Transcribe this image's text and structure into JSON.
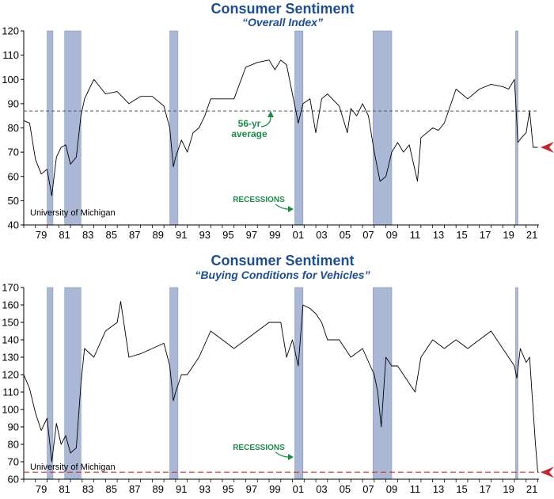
{
  "colors": {
    "title": "#1f4e8c",
    "recession": "#aab8d6",
    "line": "#000000",
    "average": "#555555",
    "current_line": "#d42d2d",
    "marker": "#c2272d",
    "annotation": "#1e8a4a"
  },
  "chart_data": [
    {
      "type": "line",
      "title": "Consumer Sentiment",
      "subtitle": "“Overall Index”",
      "source": "University of Michigan",
      "ylim": [
        40,
        120
      ],
      "yticks": [
        40,
        50,
        60,
        70,
        80,
        90,
        100,
        110,
        120
      ],
      "xlim": [
        1978.0,
        2022.1
      ],
      "xtick_labels": [
        "79",
        "81",
        "83",
        "85",
        "87",
        "89",
        "91",
        "93",
        "95",
        "97",
        "99",
        "01",
        "03",
        "05",
        "07",
        "09",
        "11",
        "13",
        "15",
        "17",
        "19",
        "21"
      ],
      "recessions": [
        [
          1980.0,
          1980.5
        ],
        [
          1981.5,
          1982.9
        ],
        [
          1990.5,
          1991.2
        ],
        [
          2001.2,
          2001.9
        ],
        [
          2007.9,
          2009.5
        ],
        [
          2020.1,
          2020.3
        ]
      ],
      "average": {
        "value": 87,
        "label": "56-yr\naverage"
      },
      "recessions_label": "RECESSIONS",
      "current_marker": 72,
      "series": [
        {
          "x": [
            1978.0,
            1978.5,
            1979.0,
            1979.5,
            1980.0,
            1980.4,
            1980.8,
            1981.2,
            1981.6,
            1982.0,
            1982.5,
            1982.9,
            1983.2,
            1983.6,
            1984.0,
            1984.5,
            1985.0,
            1986.0,
            1987.0,
            1988.0,
            1989.0,
            1990.0,
            1990.5,
            1990.8,
            1991.0,
            1991.5,
            1992.0,
            1992.5,
            1993.0,
            1993.5,
            1994.0,
            1995.0,
            1996.0,
            1997.0,
            1998.0,
            1999.0,
            1999.5,
            2000.0,
            2000.5,
            2001.0,
            2001.5,
            2001.9,
            2002.5,
            2003.0,
            2003.5,
            2004.0,
            2005.0,
            2005.7,
            2006.0,
            2006.5,
            2007.0,
            2007.5,
            2008.0,
            2008.5,
            2009.0,
            2009.5,
            2010.0,
            2010.5,
            2011.0,
            2011.7,
            2012.0,
            2013.0,
            2013.5,
            2014.0,
            2015.0,
            2016.0,
            2017.0,
            2018.0,
            2019.0,
            2019.5,
            2020.0,
            2020.3,
            2020.6,
            2021.0,
            2021.3,
            2021.6,
            2022.0
          ],
          "y": [
            83,
            82,
            67,
            61,
            63,
            52,
            68,
            72,
            73,
            65,
            68,
            85,
            92,
            96,
            100,
            97,
            94,
            95,
            90,
            93,
            93,
            89,
            80,
            64,
            68,
            75,
            70,
            78,
            80,
            85,
            92,
            92,
            92,
            105,
            107,
            108,
            104,
            108,
            106,
            94,
            82,
            90,
            92,
            78,
            92,
            94,
            89,
            78,
            88,
            85,
            90,
            85,
            70,
            58,
            60,
            70,
            74,
            70,
            73,
            58,
            76,
            80,
            79,
            82,
            96,
            92,
            96,
            98,
            97,
            96,
            100,
            74,
            76,
            78,
            87,
            72,
            72
          ]
        }
      ]
    },
    {
      "type": "line",
      "title": "Consumer Sentiment",
      "subtitle": "“Buying Conditions for Vehicles”",
      "source": "University of Michigan",
      "ylim": [
        60,
        170
      ],
      "yticks": [
        60,
        70,
        80,
        90,
        100,
        110,
        120,
        130,
        140,
        150,
        160,
        170
      ],
      "xlim": [
        1978.0,
        2022.1
      ],
      "xtick_labels": [
        "79",
        "81",
        "83",
        "85",
        "87",
        "89",
        "91",
        "93",
        "95",
        "97",
        "99",
        "01",
        "03",
        "05",
        "07",
        "09",
        "11",
        "13",
        "15",
        "17",
        "19",
        "21"
      ],
      "recessions": [
        [
          1980.0,
          1980.5
        ],
        [
          1981.5,
          1982.9
        ],
        [
          1990.5,
          1991.2
        ],
        [
          2001.2,
          2001.9
        ],
        [
          2007.9,
          2009.5
        ],
        [
          2020.1,
          2020.3
        ]
      ],
      "reference_line": 64,
      "recessions_label": "RECESSIONS",
      "current_marker": 64,
      "series": [
        {
          "x": [
            1978.0,
            1978.5,
            1979.0,
            1979.5,
            1980.0,
            1980.4,
            1980.8,
            1981.2,
            1981.6,
            1982.0,
            1982.5,
            1982.9,
            1983.2,
            1984.0,
            1985.0,
            1986.0,
            1986.3,
            1987.0,
            1988.0,
            1989.0,
            1990.0,
            1990.5,
            1990.8,
            1991.0,
            1991.5,
            1992.0,
            1993.0,
            1994.0,
            1995.0,
            1996.0,
            1997.0,
            1998.0,
            1999.0,
            2000.0,
            2000.5,
            2001.0,
            2001.5,
            2001.9,
            2002.5,
            2003.0,
            2003.5,
            2004.0,
            2005.0,
            2006.0,
            2007.0,
            2008.0,
            2008.3,
            2008.6,
            2009.0,
            2009.5,
            2010.0,
            2011.0,
            2011.5,
            2012.0,
            2013.0,
            2014.0,
            2015.0,
            2016.0,
            2017.0,
            2018.0,
            2019.0,
            2019.5,
            2020.0,
            2020.2,
            2020.5,
            2021.0,
            2021.3,
            2021.5,
            2021.8,
            2022.0
          ],
          "y": [
            120,
            112,
            98,
            88,
            95,
            70,
            92,
            80,
            85,
            75,
            78,
            115,
            135,
            130,
            145,
            150,
            162,
            130,
            132,
            135,
            138,
            125,
            105,
            110,
            120,
            120,
            130,
            145,
            140,
            135,
            140,
            145,
            150,
            150,
            130,
            140,
            125,
            160,
            158,
            155,
            150,
            140,
            140,
            130,
            135,
            120,
            110,
            90,
            130,
            125,
            125,
            115,
            110,
            130,
            140,
            135,
            140,
            135,
            140,
            145,
            135,
            130,
            125,
            118,
            135,
            127,
            130,
            110,
            80,
            64
          ]
        }
      ]
    }
  ]
}
